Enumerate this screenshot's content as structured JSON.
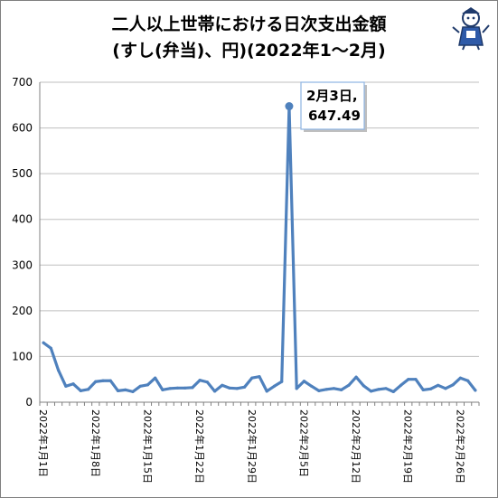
{
  "title_line1": "二人以上世帯における日次支出金額",
  "title_line2": "(すし(弁当)、円)(2022年1～2月)",
  "chart_data": {
    "type": "line",
    "title": "二人以上世帯における日次支出金額 (すし(弁当)、円)(2022年1～2月)",
    "xlabel": "",
    "ylabel": "",
    "ylim": [
      0,
      700
    ],
    "yticks": [
      0,
      100,
      200,
      300,
      400,
      500,
      600,
      700
    ],
    "grid": true,
    "legend": "none",
    "line_color": "#4f81bd",
    "x_tick_labels": [
      "2022年1月1日",
      "2022年1月8日",
      "2022年1月15日",
      "2022年1月22日",
      "2022年1月29日",
      "2022年2月5日",
      "2022年2月12日",
      "2022年2月19日",
      "2022年2月26日"
    ],
    "x_tick_index": [
      0,
      7,
      14,
      21,
      28,
      35,
      42,
      49,
      56
    ],
    "x": [
      "2022-01-01",
      "2022-01-02",
      "2022-01-03",
      "2022-01-04",
      "2022-01-05",
      "2022-01-06",
      "2022-01-07",
      "2022-01-08",
      "2022-01-09",
      "2022-01-10",
      "2022-01-11",
      "2022-01-12",
      "2022-01-13",
      "2022-01-14",
      "2022-01-15",
      "2022-01-16",
      "2022-01-17",
      "2022-01-18",
      "2022-01-19",
      "2022-01-20",
      "2022-01-21",
      "2022-01-22",
      "2022-01-23",
      "2022-01-24",
      "2022-01-25",
      "2022-01-26",
      "2022-01-27",
      "2022-01-28",
      "2022-01-29",
      "2022-01-30",
      "2022-01-31",
      "2022-02-01",
      "2022-02-02",
      "2022-02-03",
      "2022-02-04",
      "2022-02-05",
      "2022-02-06",
      "2022-02-07",
      "2022-02-08",
      "2022-02-09",
      "2022-02-10",
      "2022-02-11",
      "2022-02-12",
      "2022-02-13",
      "2022-02-14",
      "2022-02-15",
      "2022-02-16",
      "2022-02-17",
      "2022-02-18",
      "2022-02-19",
      "2022-02-20",
      "2022-02-21",
      "2022-02-22",
      "2022-02-23",
      "2022-02-24",
      "2022-02-25",
      "2022-02-26",
      "2022-02-27",
      "2022-02-28"
    ],
    "values": [
      130,
      118,
      70,
      35,
      40,
      25,
      28,
      45,
      47,
      47,
      25,
      27,
      23,
      35,
      38,
      53,
      27,
      30,
      31,
      31,
      32,
      48,
      44,
      24,
      37,
      31,
      30,
      33,
      53,
      56,
      24,
      35,
      45,
      647.49,
      30,
      46,
      35,
      25,
      28,
      30,
      27,
      37,
      55,
      36,
      24,
      28,
      30,
      23,
      37,
      50,
      50,
      27,
      29,
      37,
      30,
      38,
      53,
      47,
      26
    ],
    "annotation": {
      "index": 33,
      "line1": "2月3日,",
      "line2": "647.49"
    }
  }
}
